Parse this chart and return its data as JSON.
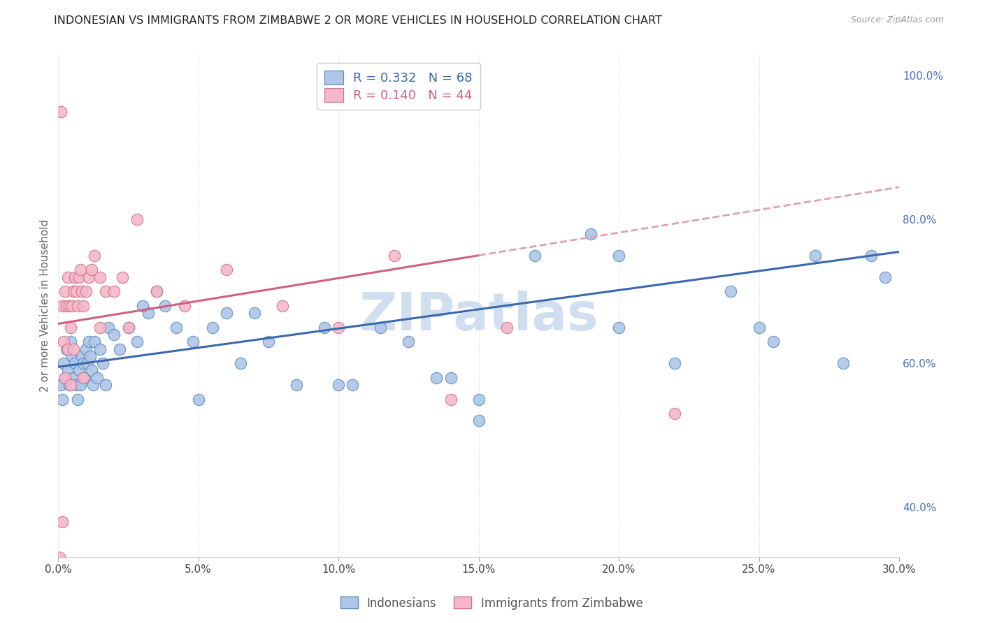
{
  "title": "INDONESIAN VS IMMIGRANTS FROM ZIMBABWE 2 OR MORE VEHICLES IN HOUSEHOLD CORRELATION CHART",
  "source": "Source: ZipAtlas.com",
  "ylabel": "2 or more Vehicles in Household",
  "x_tick_labels": [
    "0.0%",
    "5.0%",
    "10.0%",
    "15.0%",
    "20.0%",
    "25.0%",
    "30.0%"
  ],
  "x_ticks": [
    0.0,
    5.0,
    10.0,
    15.0,
    20.0,
    25.0,
    30.0
  ],
  "y_tick_labels_right": [
    "40.0%",
    "60.0%",
    "80.0%",
    "100.0%"
  ],
  "y_ticks_right": [
    40.0,
    60.0,
    80.0,
    100.0
  ],
  "xlim": [
    0.0,
    30.0
  ],
  "ylim": [
    33.0,
    103.0
  ],
  "indonesian_color": "#aec6e8",
  "indonesian_edge": "#5b8db8",
  "zimbabwe_color": "#f4b8c8",
  "zimbabwe_edge": "#d07090",
  "blue_line_color": "#3a68b0",
  "pink_line_color": "#d06080",
  "pink_dashed_color": "#e0a0b8",
  "watermark": "ZIPatlas",
  "watermark_color": "#d0dff0",
  "grid_color": "#e8e8e8",
  "r_indonesian": 0.332,
  "n_indonesian": 68,
  "r_zimbabwe": 0.14,
  "n_zimbabwe": 44,
  "indonesian_color_legend": "#aec6e8",
  "zimbabwe_color_legend": "#f4b8c8",
  "blue_line_y0": 59.5,
  "blue_line_y30": 75.5,
  "pink_solid_x0": 0.0,
  "pink_solid_x1": 15.0,
  "pink_solid_y0": 65.5,
  "pink_solid_y1": 75.0,
  "pink_dashed_x0": 15.0,
  "pink_dashed_x1": 30.0,
  "pink_dashed_y0": 75.0,
  "pink_dashed_y1": 84.5,
  "indonesian_x": [
    0.1,
    0.15,
    0.2,
    0.25,
    0.3,
    0.35,
    0.4,
    0.45,
    0.5,
    0.55,
    0.6,
    0.65,
    0.7,
    0.75,
    0.8,
    0.85,
    0.9,
    0.95,
    1.0,
    1.05,
    1.1,
    1.15,
    1.2,
    1.25,
    1.3,
    1.4,
    1.5,
    1.6,
    1.7,
    1.8,
    2.0,
    2.2,
    2.5,
    2.8,
    3.2,
    3.5,
    3.8,
    4.2,
    4.8,
    5.5,
    6.0,
    6.5,
    7.0,
    7.5,
    8.5,
    9.5,
    10.5,
    11.5,
    12.5,
    13.5,
    14.0,
    15.0,
    17.0,
    19.0,
    20.0,
    22.0,
    24.0,
    25.5,
    27.0,
    28.0,
    29.0,
    29.5,
    5.0,
    10.0,
    15.0,
    20.0,
    25.0,
    3.0
  ],
  "indonesian_y": [
    57,
    55,
    60,
    58,
    62,
    59,
    57,
    63,
    61,
    58,
    60,
    57,
    55,
    59,
    57,
    61,
    60,
    58,
    62,
    60,
    63,
    61,
    59,
    57,
    63,
    58,
    62,
    60,
    57,
    65,
    64,
    62,
    65,
    63,
    67,
    70,
    68,
    65,
    63,
    65,
    67,
    60,
    67,
    63,
    57,
    65,
    57,
    65,
    63,
    58,
    58,
    52,
    75,
    78,
    65,
    60,
    70,
    63,
    75,
    60,
    75,
    72,
    55,
    57,
    55,
    75,
    65,
    68
  ],
  "zimbabwe_x": [
    0.05,
    0.1,
    0.15,
    0.2,
    0.25,
    0.3,
    0.35,
    0.4,
    0.45,
    0.5,
    0.55,
    0.6,
    0.65,
    0.7,
    0.75,
    0.8,
    0.85,
    0.9,
    1.0,
    1.1,
    1.2,
    1.3,
    1.5,
    1.7,
    2.0,
    2.3,
    2.8,
    3.5,
    4.5,
    6.0,
    8.0,
    10.0,
    12.0,
    14.0,
    16.0,
    22.0,
    0.15,
    0.25,
    0.35,
    0.45,
    0.55,
    0.9,
    1.5,
    2.5
  ],
  "zimbabwe_y": [
    33,
    95,
    68,
    63,
    70,
    68,
    72,
    68,
    65,
    68,
    70,
    72,
    70,
    68,
    72,
    73,
    70,
    68,
    70,
    72,
    73,
    75,
    72,
    70,
    70,
    72,
    80,
    70,
    68,
    73,
    68,
    65,
    75,
    55,
    65,
    53,
    38,
    58,
    62,
    57,
    62,
    58,
    65,
    65
  ],
  "figsize": [
    14.06,
    8.92
  ],
  "dpi": 100
}
